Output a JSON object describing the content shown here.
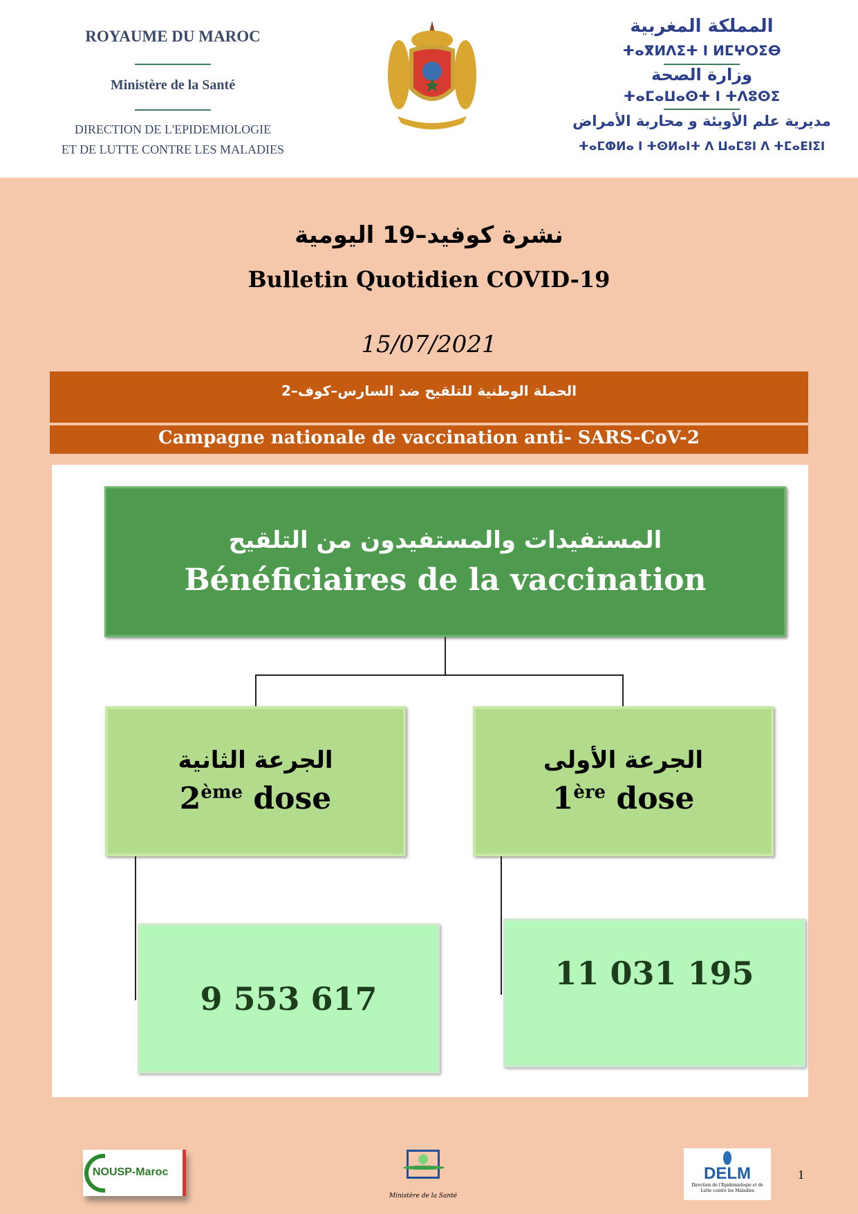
{
  "header": {
    "fr_kingdom": "ROYAUME DU MAROC",
    "fr_ministry": "Ministère de la Santé",
    "fr_direction_1": "DIRECTION DE L'EPIDEMIOLOGIE",
    "fr_direction_2": "ET DE LUTTE CONTRE LES MALADIES",
    "ar_kingdom": "المملكة المغربية",
    "tz_kingdom": "ⵜⴰⴳⵍⴷⵉⵜ ⵏ ⵍⵎⵖⵔⵉⴱ",
    "ar_ministry": "وزارة الصحة",
    "tz_ministry": "ⵜⴰⵎⴰⵡⴰⵙⵜ ⵏ ⵜⴷⵓⵙⵉ",
    "ar_direction": "مديرية علم الأوبئة و محاربة الأمراض",
    "tz_direction": "ⵜⴰⵎⵀⵍⴰ ⵏ ⵜⵙⵍⴰⵏⵜ ⴷ ⵡⴰⵎⵓⵏ ⴷ ⵜⵎⴰⴹⵏⵉⵏ"
  },
  "title": {
    "ar": "نشرة كوفيد–19 اليومية",
    "fr": "Bulletin Quotidien COVID-19",
    "date": "15/07/2021"
  },
  "campaign": {
    "ar": "الحملة الوطنية للتلقيح ضد السارس–كوف–2",
    "fr": "Campagne nationale de vaccination anti- SARS-CoV-2"
  },
  "diagram": {
    "root": {
      "ar": "المستفيدات والمستفيدون من التلقيح",
      "fr": "Bénéficiaires de la vaccination"
    },
    "dose2": {
      "ar": "الجرعة الثانية",
      "num": "2",
      "sup": "ème",
      "word": " dose",
      "value": "9 553 617"
    },
    "dose1": {
      "ar": "الجرعة الأولى",
      "num": "1",
      "sup": "ère",
      "word": " dose",
      "value": "11 031 195"
    }
  },
  "footer": {
    "nousp": "NOUSP-Maroc",
    "ministry": "Ministère de la Santé",
    "delm": "DELM",
    "delm_sub": "Direction de l'Epidémiologie et de Lutte contre les Maladies",
    "page": "1"
  },
  "colors": {
    "page_bg": "#f5c8ab",
    "campaign_bar": "#c55a11",
    "root_box": "#4e9a4e",
    "dose_box": "#b2db8c",
    "value_box": "#b5f7bb"
  }
}
